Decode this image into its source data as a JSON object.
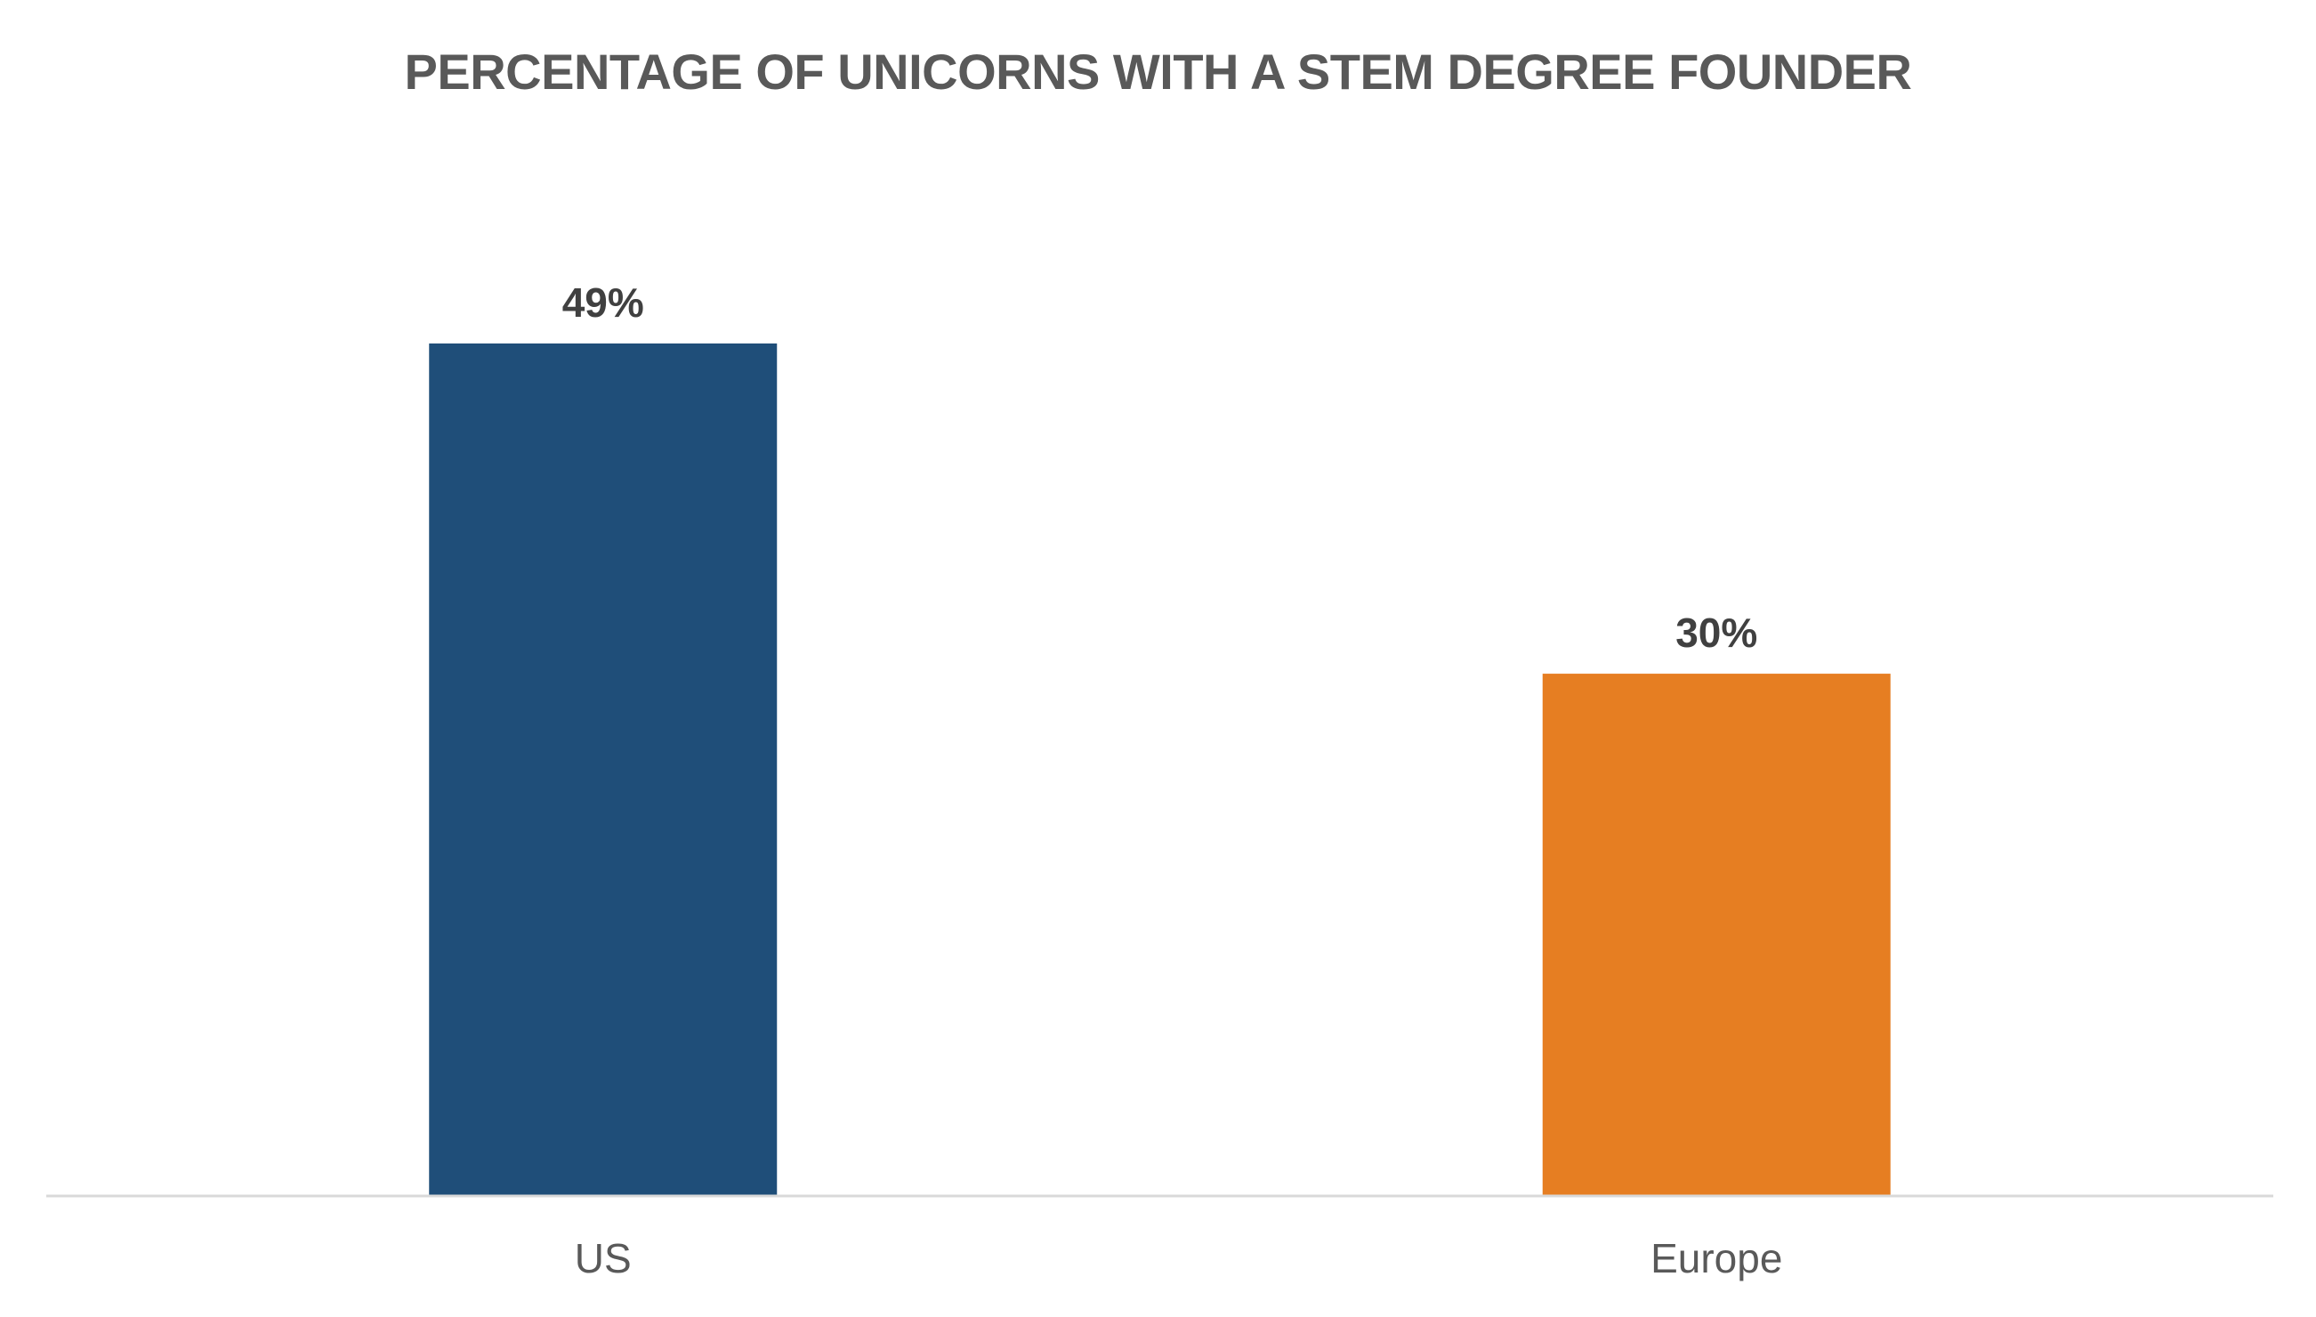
{
  "chart_data": {
    "type": "bar",
    "title": "PERCENTAGE OF UNICORNS WITH A STEM DEGREE FOUNDER",
    "categories": [
      "US",
      "Europe"
    ],
    "values": [
      49,
      30
    ],
    "data_labels": [
      "49%",
      "30%"
    ],
    "colors": [
      "#1F4E79",
      "#E67E22"
    ],
    "ylim": [
      0,
      49
    ],
    "grid": false,
    "legend": "none",
    "axis_line_color": "#D9D9D9"
  }
}
